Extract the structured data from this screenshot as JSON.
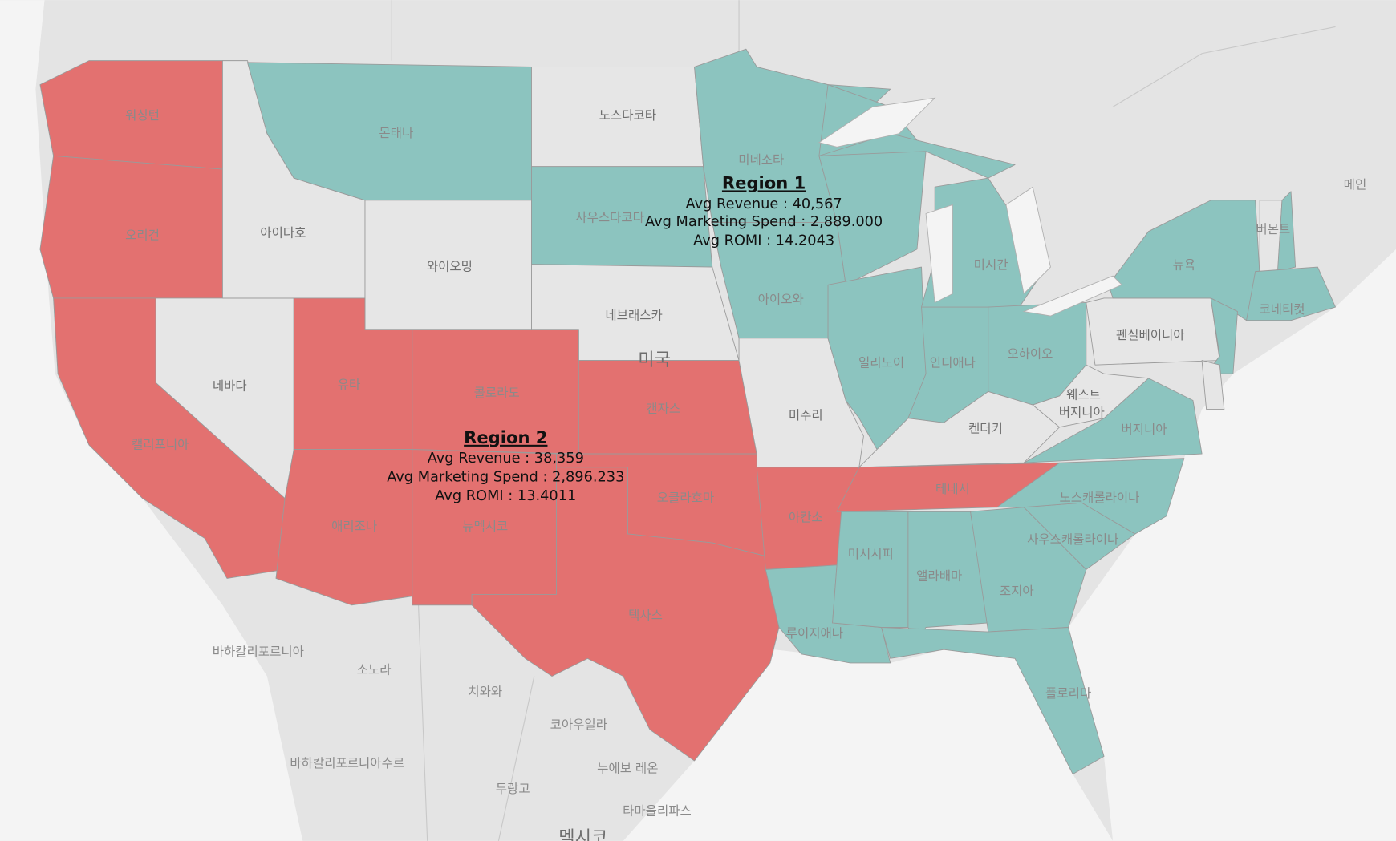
{
  "regions": [
    {
      "title": "Region 1",
      "color": "#8cc4bf",
      "lines": [
        "Avg Revenue : 40,567",
        "Avg Marketing Spend : 2,889.000",
        "Avg ROMI : 14.2043"
      ]
    },
    {
      "title": "Region 2",
      "color": "#e37170",
      "lines": [
        "Avg Revenue : 38,359",
        "Avg Marketing Spend : 2,896.233",
        "Avg ROMI : 13.4011"
      ]
    }
  ],
  "place_labels": [
    "워싱턴",
    "오리건",
    "캘리포니아",
    "네바다",
    "아이다호",
    "몬태나",
    "와이오밍",
    "유타",
    "콜로라도",
    "애리조나",
    "뉴멕시코",
    "노스다코타",
    "사우스다코타",
    "네브래스카",
    "캔자스",
    "오클라호마",
    "텍사스",
    "미네소타",
    "아이오와",
    "미주리",
    "아칸소",
    "루이지애나",
    "일리노이",
    "인디애나",
    "미시간",
    "오하이오",
    "켄터키",
    "테네시",
    "미시시피",
    "앨라배마",
    "조지아",
    "플로리다",
    "사우스캐롤라이나",
    "노스캐롤라이나",
    "버지니아",
    "웨스트",
    "버지니아",
    "펜실베이니아",
    "뉴욕",
    "버몬트",
    "코네티컷",
    "메인",
    "미국",
    "바하칼리포르니아",
    "소노라",
    "치와와",
    "코아우일라",
    "누에보 레온",
    "두랑고",
    "타마울리파스",
    "바하칼리포르니아수르",
    "멕시코"
  ]
}
